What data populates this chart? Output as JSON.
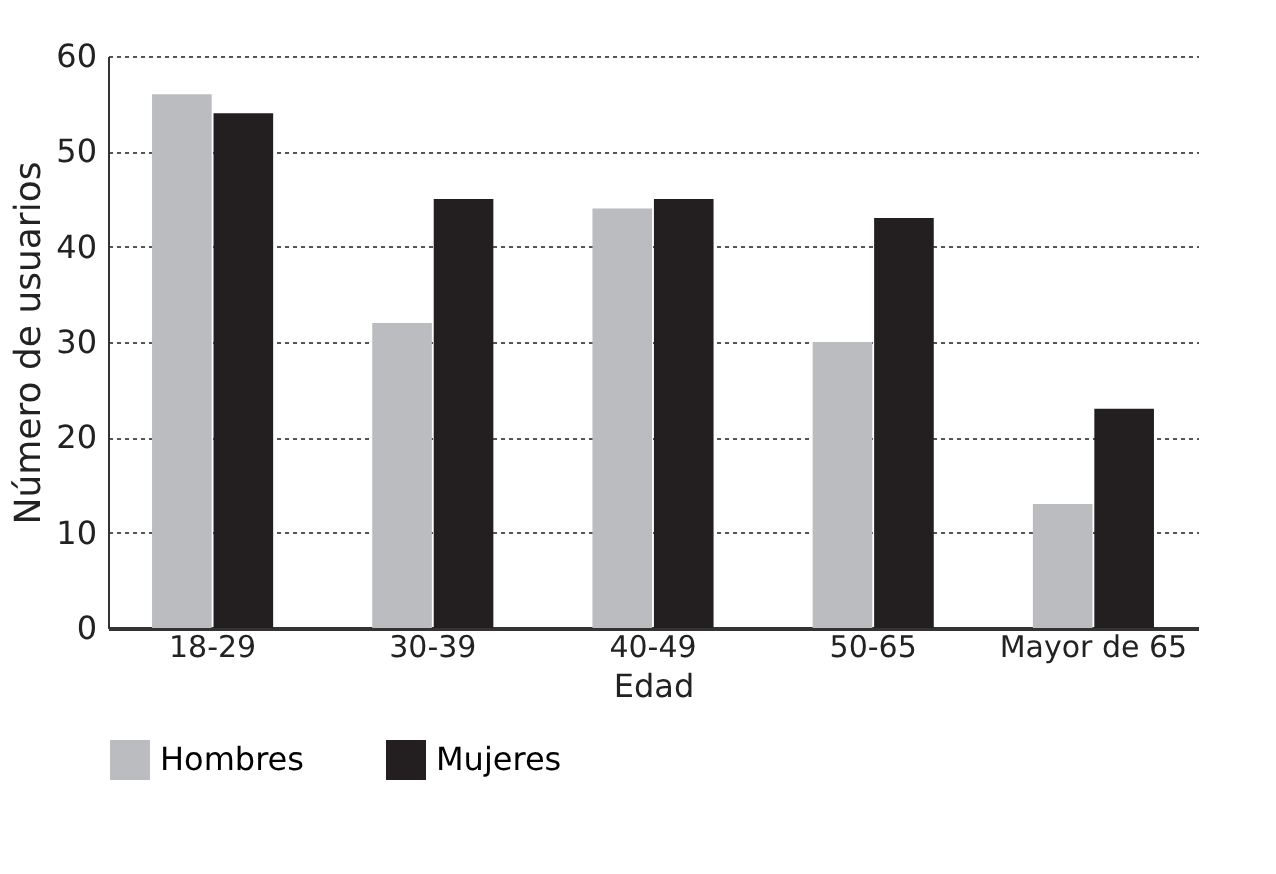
{
  "chart_data": {
    "type": "bar",
    "xlabel": "Edad",
    "ylabel": "Número de usuarios",
    "categories": [
      "18-29",
      "30-39",
      "40-49",
      "50-65",
      "Mayor de 65"
    ],
    "series": [
      {
        "name": "Hombres",
        "color": "#bbbcbf",
        "values": [
          56,
          32,
          44,
          30,
          13
        ]
      },
      {
        "name": "Mujeres",
        "color": "#231f20",
        "values": [
          54,
          45,
          45,
          43,
          23
        ]
      }
    ],
    "ylim": [
      0,
      60
    ],
    "yticks": [
      0,
      10,
      20,
      30,
      40,
      50,
      60
    ],
    "grid": "y",
    "legend": "bottom"
  }
}
